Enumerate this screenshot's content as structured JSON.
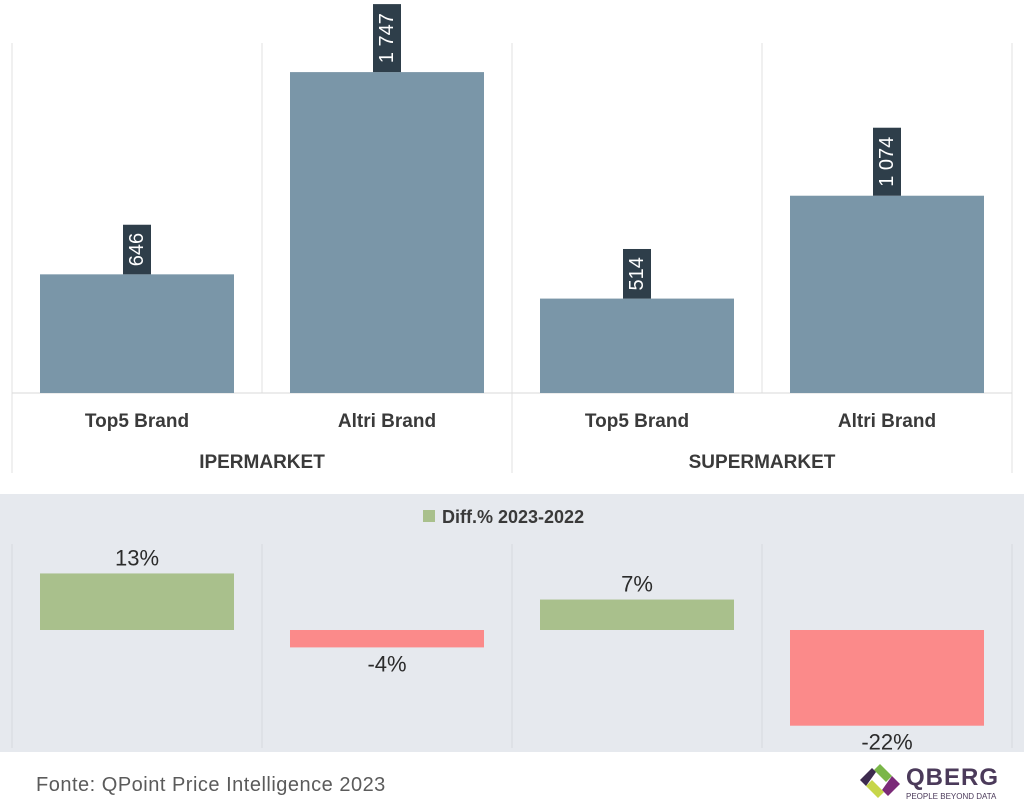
{
  "chart_data": [
    {
      "type": "bar",
      "groups": [
        {
          "label": "IPERMARKET",
          "categories": [
            "Top5 Brand",
            "Altri Brand"
          ],
          "values": [
            646,
            1747
          ],
          "value_labels": [
            "646",
            "1 747"
          ]
        },
        {
          "label": "SUPERMARKET",
          "categories": [
            "Top5 Brand",
            "Altri Brand"
          ],
          "values": [
            514,
            1074
          ],
          "value_labels": [
            "514",
            "1 074"
          ]
        }
      ],
      "ylim": [
        0,
        1900
      ],
      "grid": false,
      "bar_color": "#7a96a8",
      "label_box_color": "#2e3e4a"
    },
    {
      "type": "bar",
      "legend": {
        "label": "Diff.% 2023-2022",
        "placement": "top-center"
      },
      "values": [
        13,
        -4,
        7,
        -22
      ],
      "value_labels": [
        "13%",
        "-4%",
        "7%",
        "-22%"
      ],
      "ylim": [
        -24,
        16
      ],
      "positive_color": "#a9c08c",
      "negative_color": "#fb8a8a",
      "background": "#e6e9ee"
    }
  ],
  "footer": {
    "source": "Fonte: QPoint Price Intelligence 2023"
  },
  "logo": {
    "name": "QBERG",
    "tagline": "PEOPLE BEYOND DATA",
    "colors": [
      "#7ab648",
      "#7b2a78",
      "#c7d64a",
      "#3d2b4f"
    ]
  }
}
